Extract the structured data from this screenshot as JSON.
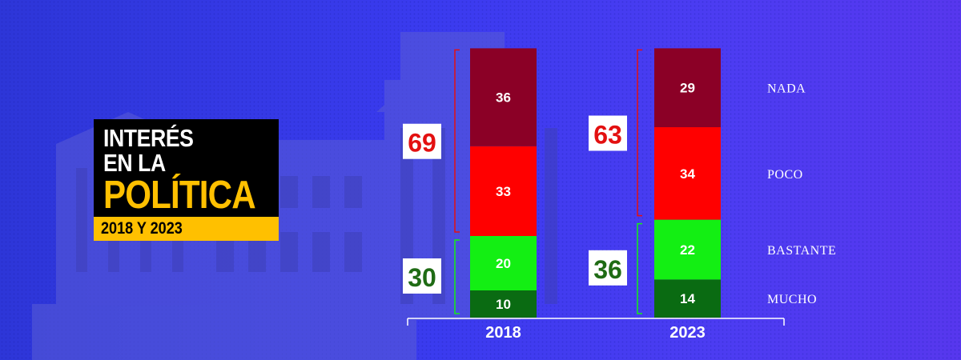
{
  "title": {
    "line1": "INTERÉS",
    "line2": "EN LA",
    "line3": "POLÍTICA",
    "subtitle": "2018 Y 2023"
  },
  "colors": {
    "nada": "#8b0026",
    "poco": "#ff0000",
    "bastante": "#13ef13",
    "mucho": "#0a6b12",
    "negative_total": "#e31010",
    "positive_total": "#1f6b14",
    "title_accent": "#ffc000"
  },
  "chart_data": {
    "type": "bar",
    "stacked": true,
    "categories": [
      "2018",
      "2023"
    ],
    "series": [
      {
        "name": "MUCHO",
        "values": [
          10,
          14
        ]
      },
      {
        "name": "BASTANTE",
        "values": [
          20,
          22
        ]
      },
      {
        "name": "POCO",
        "values": [
          33,
          34
        ]
      },
      {
        "name": "NADA",
        "values": [
          36,
          29
        ]
      }
    ],
    "totals": {
      "negative": [
        69,
        63
      ],
      "positive": [
        30,
        36
      ]
    },
    "title": "INTERÉS EN LA POLÍTICA",
    "subtitle": "2018 Y 2023",
    "legend_placement": "right",
    "grid": false
  }
}
